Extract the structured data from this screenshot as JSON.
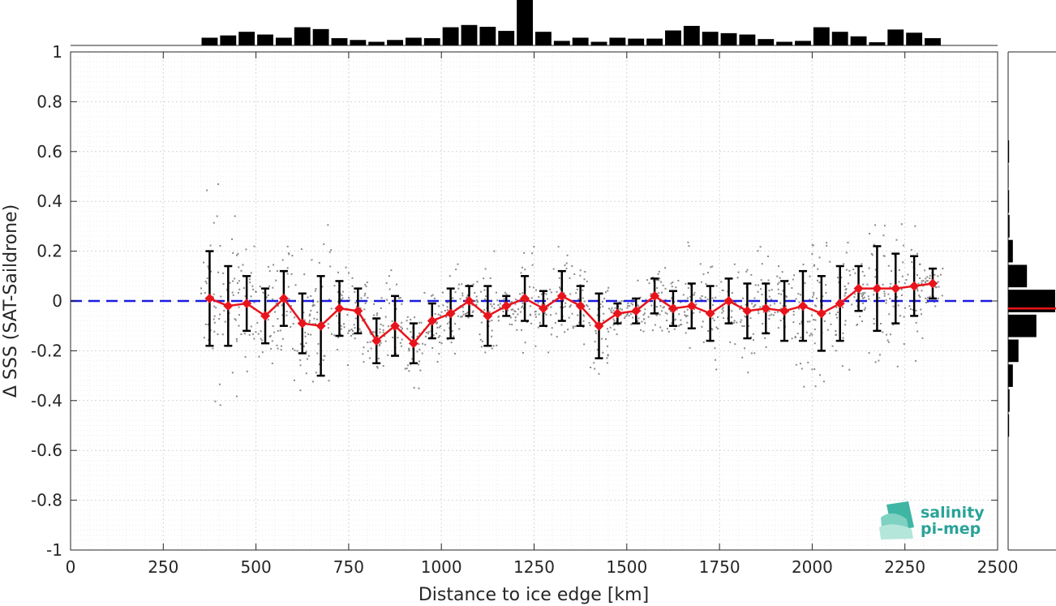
{
  "chart_data": {
    "type": "line",
    "xlabel": "Distance to ice edge [km]",
    "ylabel": "Δ SSS (SAT-Saildrone)",
    "xlim": [
      0,
      2500
    ],
    "ylim": [
      -1,
      1
    ],
    "xticks": [
      "0",
      "250",
      "500",
      "750",
      "1000",
      "1250",
      "1500",
      "1750",
      "2000",
      "2250",
      "2500"
    ],
    "yticks": [
      "-1",
      "-0.8",
      "-0.6",
      "-0.4",
      "-0.2",
      "0",
      "0.2",
      "0.4",
      "0.6",
      "0.8",
      "1"
    ],
    "grid": true,
    "reference_line": {
      "y": 0,
      "style": "dashed",
      "color": "#1a1adf"
    },
    "series": [
      {
        "type": "line-errorbar",
        "color": "#e8141c",
        "error_color": "#000000",
        "x": [
          375,
          425,
          475,
          525,
          575,
          625,
          675,
          725,
          775,
          825,
          875,
          925,
          975,
          1025,
          1075,
          1125,
          1175,
          1225,
          1275,
          1325,
          1375,
          1425,
          1475,
          1525,
          1575,
          1625,
          1675,
          1725,
          1775,
          1825,
          1875,
          1925,
          1975,
          2025,
          2075,
          2125,
          2175,
          2225,
          2275,
          2325
        ],
        "y": [
          0.01,
          -0.02,
          -0.01,
          -0.06,
          0.01,
          -0.09,
          -0.1,
          -0.03,
          -0.04,
          -0.16,
          -0.1,
          -0.17,
          -0.08,
          -0.05,
          0.0,
          -0.06,
          -0.02,
          0.01,
          -0.03,
          0.02,
          -0.02,
          -0.1,
          -0.05,
          -0.04,
          0.02,
          -0.03,
          -0.02,
          -0.05,
          0.0,
          -0.04,
          -0.03,
          -0.04,
          -0.02,
          -0.05,
          -0.01,
          0.05,
          0.05,
          0.05,
          0.06,
          0.07
        ],
        "std": [
          0.19,
          0.16,
          0.11,
          0.11,
          0.11,
          0.12,
          0.2,
          0.11,
          0.09,
          0.09,
          0.12,
          0.08,
          0.07,
          0.1,
          0.06,
          0.12,
          0.04,
          0.09,
          0.07,
          0.1,
          0.08,
          0.13,
          0.04,
          0.05,
          0.07,
          0.07,
          0.09,
          0.11,
          0.09,
          0.11,
          0.1,
          0.12,
          0.14,
          0.15,
          0.15,
          0.09,
          0.17,
          0.14,
          0.12,
          0.06
        ]
      }
    ],
    "top_histogram": {
      "bins_x": [
        375,
        425,
        475,
        525,
        575,
        625,
        675,
        725,
        775,
        825,
        875,
        925,
        975,
        1025,
        1075,
        1125,
        1175,
        1225,
        1275,
        1325,
        1375,
        1425,
        1475,
        1525,
        1575,
        1625,
        1675,
        1725,
        1775,
        1825,
        1875,
        1925,
        1975,
        2025,
        2075,
        2125,
        2175,
        2225,
        2275,
        2325
      ],
      "counts": [
        17,
        22,
        30,
        24,
        17,
        40,
        36,
        16,
        12,
        8,
        12,
        17,
        16,
        40,
        45,
        41,
        32,
        100,
        30,
        10,
        17,
        8,
        17,
        15,
        15,
        33,
        43,
        30,
        27,
        24,
        14,
        8,
        10,
        40,
        30,
        20,
        7,
        35,
        28,
        16
      ],
      "color": "#000000"
    },
    "right_histogram": {
      "bins_y": [
        0.6,
        0.5,
        0.4,
        0.3,
        0.2,
        0.1,
        0.0,
        -0.1,
        -0.2,
        -0.3,
        -0.4,
        -0.5
      ],
      "counts": [
        2,
        1,
        2,
        3,
        10,
        40,
        100,
        60,
        22,
        10,
        3,
        2
      ],
      "mean_line_y": -0.03,
      "mean_line_color": "#e8141c",
      "color": "#000000"
    }
  },
  "logo": {
    "line1": "salinity",
    "line2": "pi-mep"
  }
}
